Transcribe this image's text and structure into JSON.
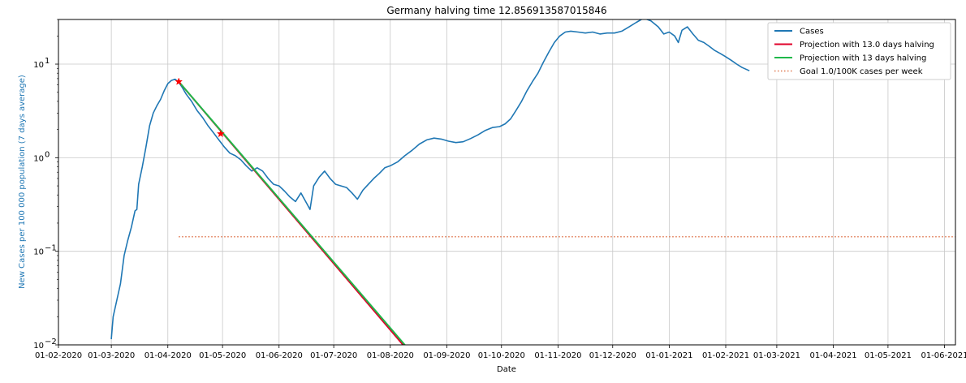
{
  "chart_data": {
    "type": "line",
    "title": "Germany halving time 12.856913587015846",
    "xlabel": "Date",
    "ylabel": "New Cases per 100 000 population (7 days average)",
    "y_scale": "log",
    "ylim": [
      0.01,
      30
    ],
    "xlim": [
      "2020-02-01",
      "2021-06-07"
    ],
    "x_ticks": [
      "2020-02-01",
      "2020-03-01",
      "2020-04-01",
      "2020-05-01",
      "2020-06-01",
      "2020-07-01",
      "2020-08-01",
      "2020-09-01",
      "2020-10-01",
      "2020-11-01",
      "2020-12-01",
      "2021-01-01",
      "2021-02-01",
      "2021-03-01",
      "2021-04-01",
      "2021-05-01",
      "2021-06-01"
    ],
    "x_tick_labels": [
      "01-02-2020",
      "01-03-2020",
      "01-04-2020",
      "01-05-2020",
      "01-06-2020",
      "01-07-2020",
      "01-08-2020",
      "01-09-2020",
      "01-10-2020",
      "01-11-2020",
      "01-12-2020",
      "01-01-2021",
      "01-02-2021",
      "01-03-2021",
      "01-04-2021",
      "01-05-2021",
      "01-06-2021"
    ],
    "y_ticks": [
      0.01,
      0.1,
      1,
      10
    ],
    "y_tick_labels": [
      "10",
      "10",
      "10",
      "10"
    ],
    "y_tick_exponents": [
      "−2",
      "−1",
      "0",
      "1"
    ],
    "grid": true,
    "legend_position": "top-right",
    "colors": {
      "cases": "#1f77b4",
      "projection_red": "#e0002a",
      "projection_green": "#1fb84a",
      "goal": "#e07850",
      "marker": "#ff0000",
      "grid": "#c8c8c8",
      "ylabel": "#1f77b4"
    },
    "series": [
      {
        "name": "Cases",
        "type": "line",
        "points": [
          [
            "2020-03-01",
            0.0115
          ],
          [
            "2020-03-02",
            0.02
          ],
          [
            "2020-03-04",
            0.03
          ],
          [
            "2020-03-06",
            0.045
          ],
          [
            "2020-03-08",
            0.09
          ],
          [
            "2020-03-10",
            0.13
          ],
          [
            "2020-03-12",
            0.18
          ],
          [
            "2020-03-14",
            0.27
          ],
          [
            "2020-03-15",
            0.28
          ],
          [
            "2020-03-16",
            0.52
          ],
          [
            "2020-03-18",
            0.8
          ],
          [
            "2020-03-20",
            1.3
          ],
          [
            "2020-03-22",
            2.2
          ],
          [
            "2020-03-24",
            3.0
          ],
          [
            "2020-03-26",
            3.6
          ],
          [
            "2020-03-28",
            4.2
          ],
          [
            "2020-03-30",
            5.2
          ],
          [
            "2020-04-01",
            6.2
          ],
          [
            "2020-04-03",
            6.7
          ],
          [
            "2020-04-05",
            6.9
          ],
          [
            "2020-04-07",
            6.4
          ],
          [
            "2020-04-09",
            5.6
          ],
          [
            "2020-04-11",
            4.8
          ],
          [
            "2020-04-14",
            4.0
          ],
          [
            "2020-04-17",
            3.2
          ],
          [
            "2020-04-20",
            2.7
          ],
          [
            "2020-04-23",
            2.2
          ],
          [
            "2020-04-26",
            1.85
          ],
          [
            "2020-04-29",
            1.55
          ],
          [
            "2020-05-02",
            1.3
          ],
          [
            "2020-05-05",
            1.12
          ],
          [
            "2020-05-08",
            1.05
          ],
          [
            "2020-05-11",
            0.95
          ],
          [
            "2020-05-14",
            0.82
          ],
          [
            "2020-05-17",
            0.72
          ],
          [
            "2020-05-20",
            0.78
          ],
          [
            "2020-05-23",
            0.72
          ],
          [
            "2020-05-26",
            0.6
          ],
          [
            "2020-05-29",
            0.52
          ],
          [
            "2020-06-01",
            0.5
          ],
          [
            "2020-06-04",
            0.44
          ],
          [
            "2020-06-07",
            0.38
          ],
          [
            "2020-06-10",
            0.34
          ],
          [
            "2020-06-13",
            0.42
          ],
          [
            "2020-06-16",
            0.33
          ],
          [
            "2020-06-18",
            0.28
          ],
          [
            "2020-06-20",
            0.5
          ],
          [
            "2020-06-23",
            0.62
          ],
          [
            "2020-06-26",
            0.72
          ],
          [
            "2020-06-29",
            0.6
          ],
          [
            "2020-07-02",
            0.52
          ],
          [
            "2020-07-05",
            0.5
          ],
          [
            "2020-07-08",
            0.48
          ],
          [
            "2020-07-11",
            0.42
          ],
          [
            "2020-07-14",
            0.36
          ],
          [
            "2020-07-17",
            0.45
          ],
          [
            "2020-07-20",
            0.52
          ],
          [
            "2020-07-23",
            0.6
          ],
          [
            "2020-07-26",
            0.68
          ],
          [
            "2020-07-29",
            0.78
          ],
          [
            "2020-08-01",
            0.82
          ],
          [
            "2020-08-05",
            0.9
          ],
          [
            "2020-08-09",
            1.05
          ],
          [
            "2020-08-13",
            1.2
          ],
          [
            "2020-08-17",
            1.4
          ],
          [
            "2020-08-21",
            1.55
          ],
          [
            "2020-08-25",
            1.62
          ],
          [
            "2020-08-29",
            1.58
          ],
          [
            "2020-09-02",
            1.5
          ],
          [
            "2020-09-06",
            1.45
          ],
          [
            "2020-09-10",
            1.48
          ],
          [
            "2020-09-14",
            1.6
          ],
          [
            "2020-09-18",
            1.75
          ],
          [
            "2020-09-22",
            1.95
          ],
          [
            "2020-09-26",
            2.1
          ],
          [
            "2020-09-30",
            2.15
          ],
          [
            "2020-10-03",
            2.3
          ],
          [
            "2020-10-06",
            2.6
          ],
          [
            "2020-10-09",
            3.2
          ],
          [
            "2020-10-12",
            4.0
          ],
          [
            "2020-10-15",
            5.2
          ],
          [
            "2020-10-18",
            6.5
          ],
          [
            "2020-10-21",
            8.0
          ],
          [
            "2020-10-24",
            10.5
          ],
          [
            "2020-10-27",
            13.5
          ],
          [
            "2020-10-30",
            17.0
          ],
          [
            "2020-11-02",
            20.0
          ],
          [
            "2020-11-05",
            22.0
          ],
          [
            "2020-11-08",
            22.5
          ],
          [
            "2020-11-12",
            22.0
          ],
          [
            "2020-11-16",
            21.5
          ],
          [
            "2020-11-20",
            22.0
          ],
          [
            "2020-11-24",
            21.0
          ],
          [
            "2020-11-28",
            21.5
          ],
          [
            "2020-12-02",
            21.5
          ],
          [
            "2020-12-06",
            22.5
          ],
          [
            "2020-12-10",
            25.0
          ],
          [
            "2020-12-14",
            28.0
          ],
          [
            "2020-12-18",
            31.0
          ],
          [
            "2020-12-22",
            29.0
          ],
          [
            "2020-12-26",
            25.0
          ],
          [
            "2020-12-29",
            21.0
          ],
          [
            "2021-01-01",
            22.0
          ],
          [
            "2021-01-04",
            20.0
          ],
          [
            "2021-01-06",
            17.0
          ],
          [
            "2021-01-08",
            23.0
          ],
          [
            "2021-01-11",
            25.0
          ],
          [
            "2021-01-14",
            21.0
          ],
          [
            "2021-01-17",
            18.0
          ],
          [
            "2021-01-20",
            17.0
          ],
          [
            "2021-01-23",
            15.5
          ],
          [
            "2021-01-26",
            14.0
          ],
          [
            "2021-01-29",
            13.0
          ],
          [
            "2021-02-01",
            12.0
          ],
          [
            "2021-02-04",
            11.0
          ],
          [
            "2021-02-07",
            10.0
          ],
          [
            "2021-02-10",
            9.2
          ],
          [
            "2021-02-14",
            8.5
          ]
        ]
      },
      {
        "name": "Projection with 13.0 days halving",
        "type": "line",
        "points": [
          [
            "2020-04-07",
            6.5
          ],
          [
            "2020-08-08",
            0.01
          ]
        ]
      },
      {
        "name": "Projection with 13 days halving",
        "type": "line",
        "points": [
          [
            "2020-04-07",
            6.5
          ],
          [
            "2020-08-09",
            0.01
          ]
        ]
      },
      {
        "name": "Goal 1.0/100K cases per week",
        "type": "hline",
        "y": 0.1429,
        "x_range": [
          "2020-04-07",
          "2021-06-07"
        ]
      }
    ],
    "markers": [
      {
        "x": "2020-04-07",
        "y": 6.5
      },
      {
        "x": "2020-04-30",
        "y": 1.8
      }
    ]
  }
}
